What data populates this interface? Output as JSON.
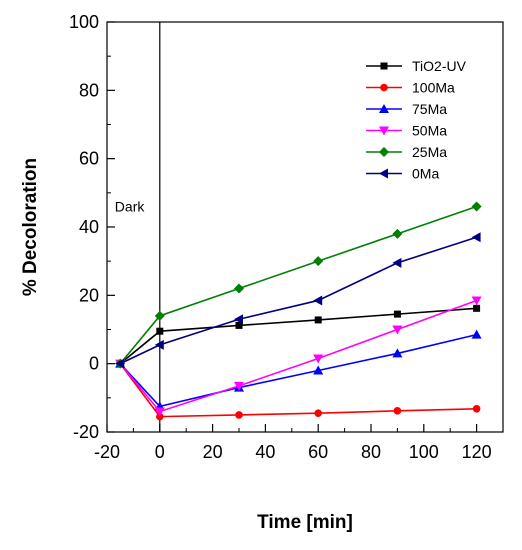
{
  "chart_data": {
    "type": "line",
    "xlabel": "Time [min]",
    "ylabel": "% Decoloration",
    "xlim": [
      -20,
      130
    ],
    "ylim": [
      -20,
      100
    ],
    "xticks": [
      -20,
      0,
      20,
      40,
      60,
      80,
      100,
      120
    ],
    "yticks": [
      -20,
      0,
      20,
      40,
      60,
      80,
      100
    ],
    "annotation": {
      "text": "Dark",
      "at_x": 0
    },
    "legend_position": "top-right",
    "x": [
      -15,
      0,
      30,
      60,
      90,
      120
    ],
    "series": [
      {
        "name": "TiO2-UV",
        "color": "#000000",
        "marker": "square",
        "values": [
          0,
          9.5,
          11.2,
          12.8,
          14.5,
          16.2
        ]
      },
      {
        "name": "100Ma",
        "color": "#ff0000",
        "marker": "circle",
        "values": [
          0,
          -15.5,
          -15.0,
          -14.5,
          -13.8,
          -13.2
        ]
      },
      {
        "name": "75Ma",
        "color": "#0000ff",
        "marker": "triangle-up",
        "values": [
          0,
          -12.5,
          -7.0,
          -2.0,
          3.0,
          8.5
        ]
      },
      {
        "name": "50Ma",
        "color": "#ff00ff",
        "marker": "triangle-down",
        "values": [
          0,
          -14.0,
          -6.5,
          1.5,
          10.0,
          18.5
        ]
      },
      {
        "name": "25Ma",
        "color": "#008000",
        "marker": "diamond",
        "values": [
          0,
          14.0,
          22.0,
          30.0,
          38.0,
          46.0
        ]
      },
      {
        "name": "0Ma",
        "color": "#000080",
        "marker": "triangle-left",
        "values": [
          0,
          5.5,
          13.0,
          18.5,
          29.5,
          37.0
        ]
      }
    ]
  }
}
